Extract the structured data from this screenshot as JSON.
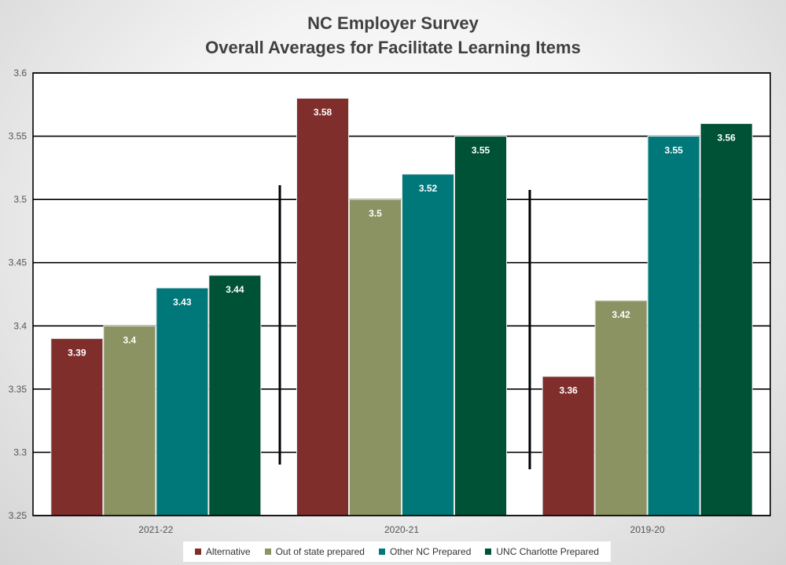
{
  "chart_data": {
    "type": "bar",
    "title": "NC Employer Survey",
    "subtitle": "Overall Averages for Facilitate Learning Items",
    "categories": [
      "2021-22",
      "2020-21",
      "2019-20"
    ],
    "series": [
      {
        "name": "Alternative",
        "color": "#7f2e2c",
        "values": [
          3.39,
          3.58,
          3.36
        ]
      },
      {
        "name": "Out of state prepared",
        "color": "#8b9363",
        "values": [
          3.4,
          3.5,
          3.42
        ]
      },
      {
        "name": "Other NC Prepared",
        "color": "#00787a",
        "values": [
          3.43,
          3.52,
          3.55
        ]
      },
      {
        "name": "UNC Charlotte Prepared",
        "color": "#005237",
        "values": [
          3.44,
          3.55,
          3.56
        ]
      }
    ],
    "ylim": [
      3.25,
      3.6
    ],
    "yticks": [
      "3.25",
      "3.3",
      "3.35",
      "3.4",
      "3.45",
      "3.5",
      "3.55",
      "3.6"
    ],
    "grid": true,
    "legend": "bottom",
    "data_labels": true
  }
}
